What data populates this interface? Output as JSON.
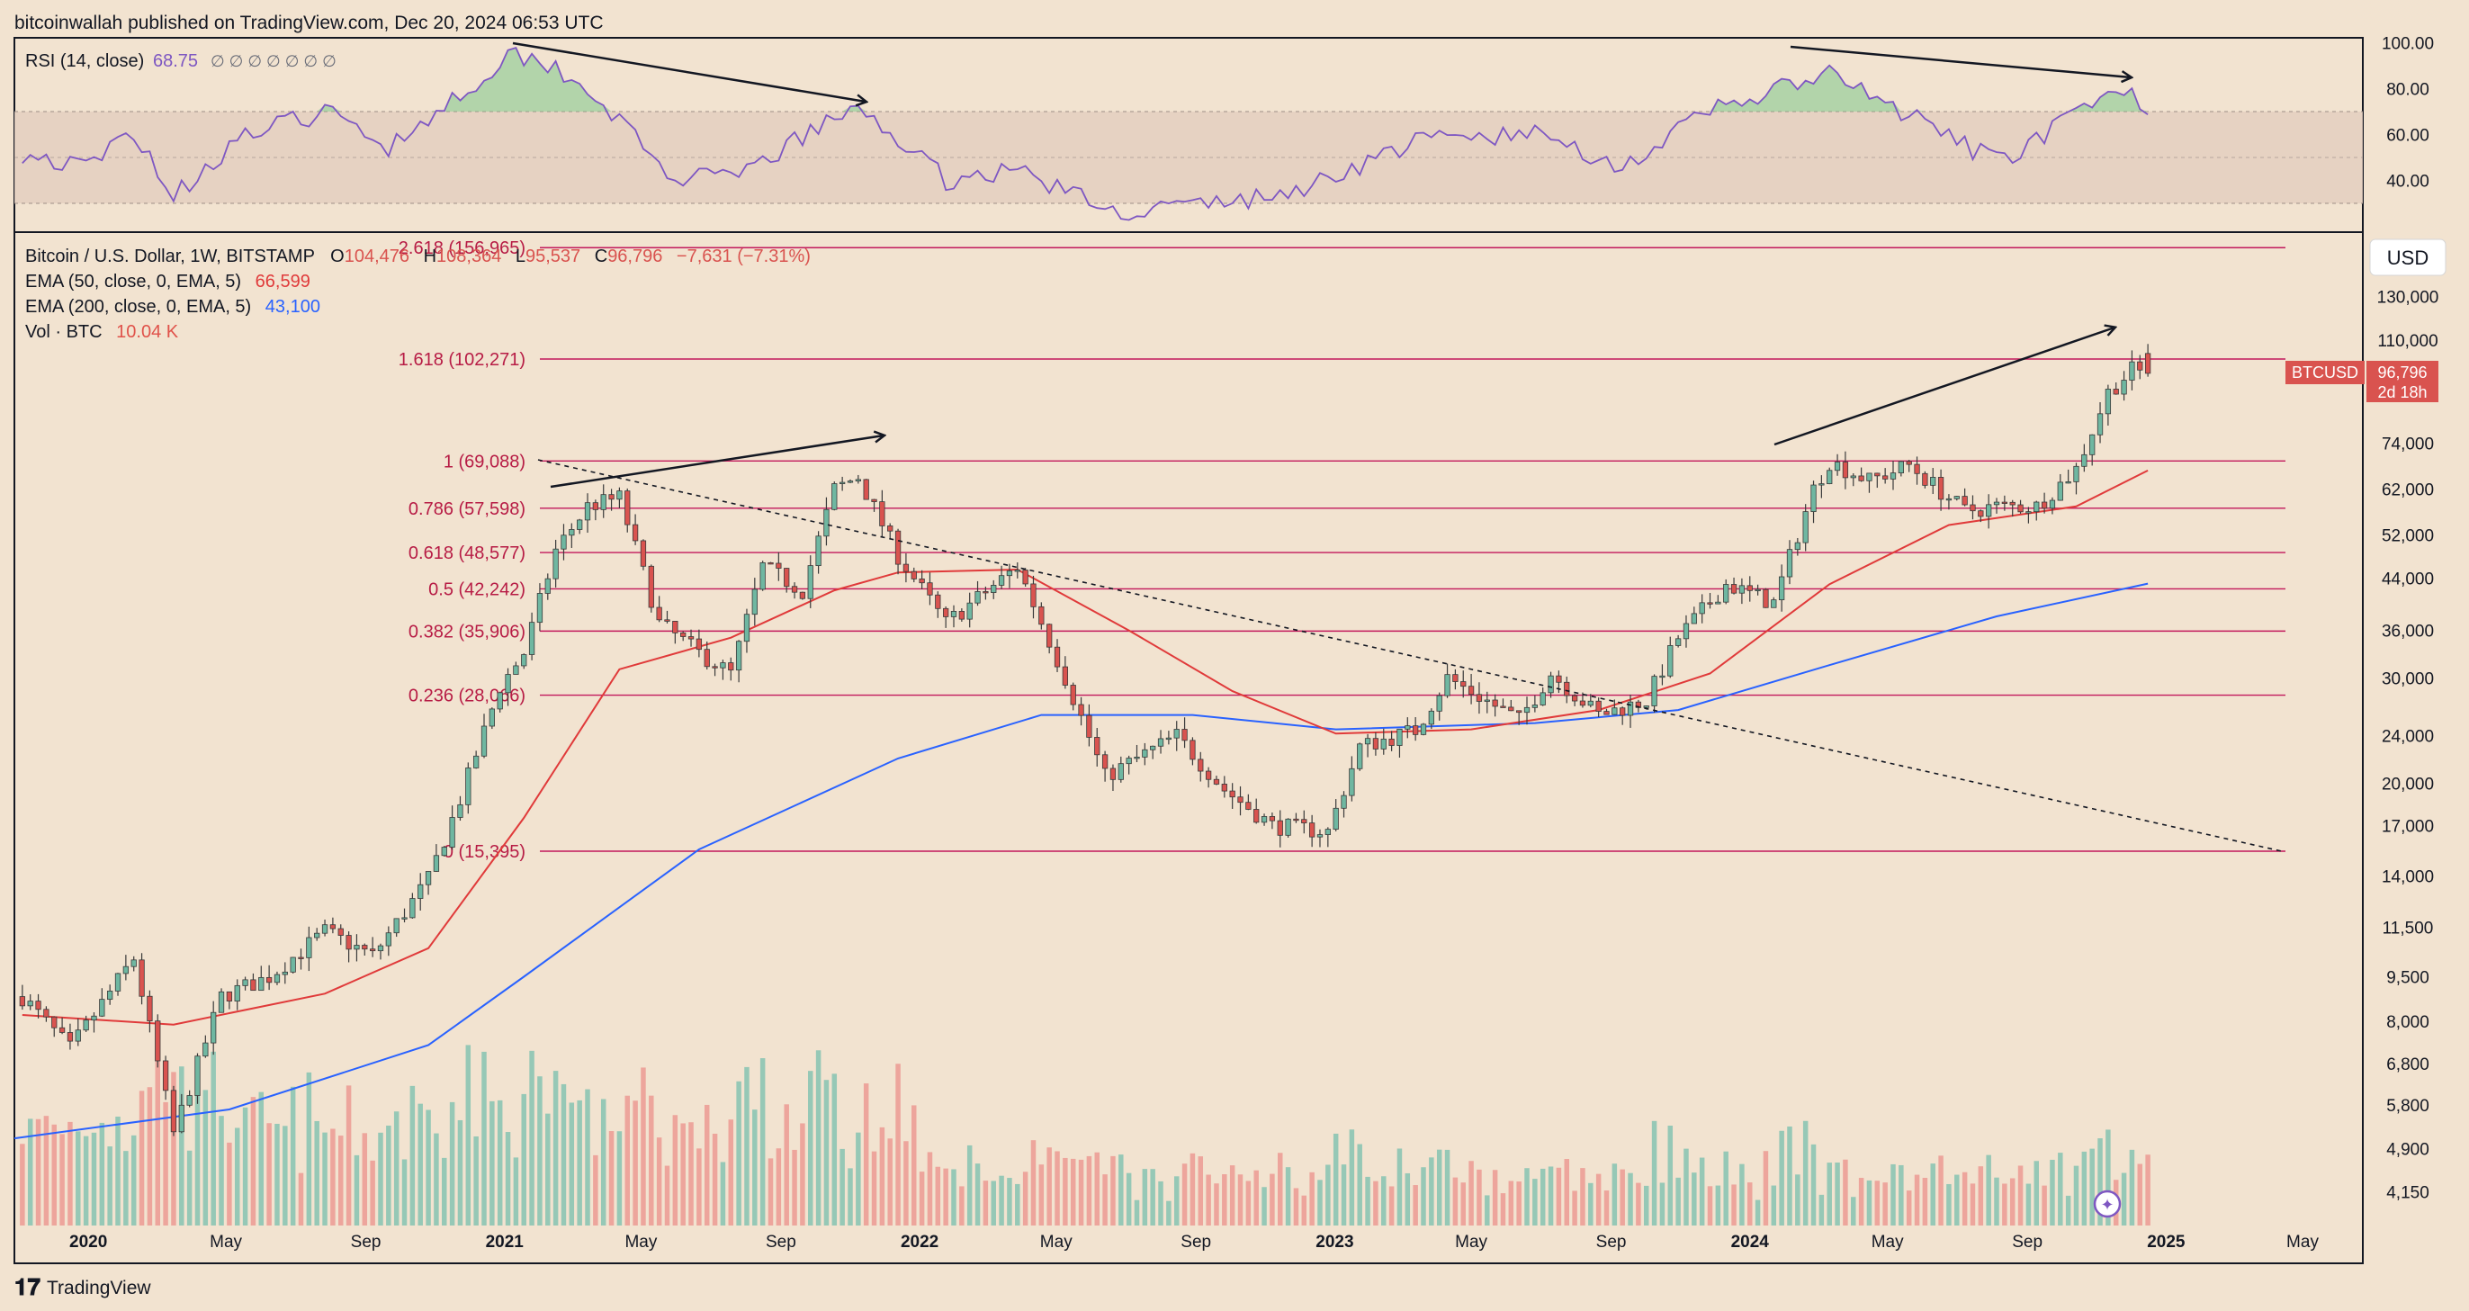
{
  "header": {
    "published_text": "bitcoinwallah published on TradingView.com, Dec 20, 2024 06:53 UTC"
  },
  "footer": {
    "brand": "TradingView"
  },
  "colors": {
    "background": "#f2e3d0",
    "up": "#6fb7a1",
    "down": "#d9534f",
    "rsi_line": "#7e57c2",
    "ema50": "#e03a3a",
    "ema200": "#2962ff",
    "fib_line": "#c2185b",
    "fib_text": "#b71c45",
    "price_badge": "#d9534f"
  },
  "rsi_panel": {
    "title": "RSI (14, close)",
    "value": "68.75",
    "placeholders": "∅ ∅ ∅ ∅ ∅ ∅ ∅",
    "axis_ticks": [
      "100.00",
      "80.00",
      "60.00",
      "40.00"
    ],
    "band_upper": 70,
    "band_mid": 50,
    "band_lower": 30
  },
  "price_panel": {
    "legend": {
      "symbol_line": "Bitcoin / U.S. Dollar, 1W, BITSTAMP",
      "open_label": "O",
      "open": "104,476",
      "high_label": "H",
      "high": "108,364",
      "low_label": "L",
      "low": "95,537",
      "close_label": "C",
      "close": "96,796",
      "change": "−7,631 (−7.31%)",
      "ema50_label": "EMA (50, close, 0, EMA, 5)",
      "ema50_value": "66,599",
      "ema200_label": "EMA (200, close, 0, EMA, 5)",
      "ema200_value": "43,100",
      "vol_label": "Vol · BTC",
      "vol_value": "10.04 K"
    },
    "currency_button": "USD",
    "price_axis_ticks": [
      "130,000",
      "110,000",
      "74,000",
      "62,000",
      "52,000",
      "44,000",
      "36,000",
      "30,000",
      "24,000",
      "20,000",
      "17,000",
      "14,000",
      "11,500",
      "9,500",
      "8,000",
      "6,800",
      "5,800",
      "4,900",
      "4,150"
    ],
    "price_badge": {
      "symbol": "BTCUSD",
      "price": "96,796",
      "countdown": "2d 18h"
    },
    "fib_levels": [
      {
        "label": "2.618 (156,965)",
        "price": 156965
      },
      {
        "label": "1.618 (102,271)",
        "price": 102271
      },
      {
        "label": "1 (69,088)",
        "price": 69088
      },
      {
        "label": "0.786 (57,598)",
        "price": 57598
      },
      {
        "label": "0.618 (48,577)",
        "price": 48577
      },
      {
        "label": "0.5 (42,242)",
        "price": 42242
      },
      {
        "label": "0.382 (35,906)",
        "price": 35906
      },
      {
        "label": "0.236 (28,066)",
        "price": 28066
      },
      {
        "label": "0 (15,395)",
        "price": 15395
      }
    ]
  },
  "time_axis": {
    "labels": [
      "2020",
      "May",
      "Sep",
      "2021",
      "May",
      "Sep",
      "2022",
      "May",
      "Sep",
      "2023",
      "May",
      "Sep",
      "2024",
      "May",
      "Sep",
      "2025",
      "May"
    ]
  },
  "chart_data": {
    "type": "candlestick",
    "title": "Bitcoin / U.S. Dollar, 1W, BITSTAMP",
    "scale": "log",
    "ylim": [
      3900,
      165000
    ],
    "x_range": [
      "2019-10-28",
      "2025-06-23"
    ],
    "price_anchors": [
      [
        "2019-11-04",
        8800
      ],
      [
        "2019-12-16",
        7200
      ],
      [
        "2020-02-10",
        10200
      ],
      [
        "2020-03-16",
        5200
      ],
      [
        "2020-04-27",
        8800
      ],
      [
        "2020-06-08",
        9500
      ],
      [
        "2020-07-27",
        11300
      ],
      [
        "2020-09-07",
        10300
      ],
      [
        "2020-10-26",
        13800
      ],
      [
        "2020-11-23",
        18800
      ],
      [
        "2020-12-28",
        29000
      ],
      [
        "2021-01-18",
        33000
      ],
      [
        "2021-02-15",
        49000
      ],
      [
        "2021-03-15",
        58000
      ],
      [
        "2021-04-12",
        60000
      ],
      [
        "2021-05-17",
        37000
      ],
      [
        "2021-06-21",
        33000
      ],
      [
        "2021-07-19",
        30500
      ],
      [
        "2021-08-16",
        46000
      ],
      [
        "2021-09-20",
        42000
      ],
      [
        "2021-10-18",
        62000
      ],
      [
        "2021-11-08",
        65000
      ],
      [
        "2021-12-13",
        48000
      ],
      [
        "2022-01-24",
        37000
      ],
      [
        "2022-03-28",
        46000
      ],
      [
        "2022-05-09",
        30000
      ],
      [
        "2022-06-13",
        20500
      ],
      [
        "2022-08-15",
        24000
      ],
      [
        "2022-09-26",
        19500
      ],
      [
        "2022-11-07",
        17000
      ],
      [
        "2022-12-26",
        16600
      ],
      [
        "2023-01-23",
        23000
      ],
      [
        "2023-03-13",
        24500
      ],
      [
        "2023-04-10",
        30000
      ],
      [
        "2023-06-12",
        25500
      ],
      [
        "2023-07-10",
        30500
      ],
      [
        "2023-08-21",
        26000
      ],
      [
        "2023-10-02",
        27500
      ],
      [
        "2023-10-30",
        35000
      ],
      [
        "2023-12-11",
        43000
      ],
      [
        "2024-01-22",
        40000
      ],
      [
        "2024-02-26",
        62000
      ],
      [
        "2024-03-11",
        69000
      ],
      [
        "2024-04-15",
        64000
      ],
      [
        "2024-05-20",
        68000
      ],
      [
        "2024-07-08",
        57000
      ],
      [
        "2024-08-05",
        58000
      ],
      [
        "2024-09-09",
        58000
      ],
      [
        "2024-10-14",
        67000
      ],
      [
        "2024-11-11",
        90000
      ],
      [
        "2024-12-02",
        98000
      ],
      [
        "2024-12-16",
        96796
      ]
    ],
    "ema50": [
      [
        "2019-11-04",
        8200
      ],
      [
        "2020-03-16",
        7900
      ],
      [
        "2020-07-27",
        8900
      ],
      [
        "2020-10-26",
        10600
      ],
      [
        "2021-01-18",
        17500
      ],
      [
        "2021-04-12",
        31000
      ],
      [
        "2021-07-19",
        35000
      ],
      [
        "2021-10-18",
        42000
      ],
      [
        "2021-12-13",
        45000
      ],
      [
        "2022-03-28",
        45500
      ],
      [
        "2022-07-04",
        36000
      ],
      [
        "2022-10-03",
        28500
      ],
      [
        "2023-01-02",
        24200
      ],
      [
        "2023-05-01",
        24600
      ],
      [
        "2023-08-21",
        26500
      ],
      [
        "2023-11-27",
        30500
      ],
      [
        "2024-03-11",
        43000
      ],
      [
        "2024-06-24",
        54000
      ],
      [
        "2024-10-14",
        58000
      ],
      [
        "2024-12-16",
        66599
      ]
    ],
    "ema200": [
      [
        "2019-10-28",
        5100
      ],
      [
        "2020-05-04",
        5700
      ],
      [
        "2020-10-26",
        7300
      ],
      [
        "2021-01-18",
        9500
      ],
      [
        "2021-06-21",
        15500
      ],
      [
        "2021-12-13",
        22000
      ],
      [
        "2022-04-18",
        26000
      ],
      [
        "2022-08-29",
        26000
      ],
      [
        "2023-01-02",
        24600
      ],
      [
        "2023-06-26",
        25200
      ],
      [
        "2023-10-30",
        26500
      ],
      [
        "2024-03-11",
        31500
      ],
      [
        "2024-08-05",
        38000
      ],
      [
        "2024-12-16",
        43100
      ]
    ],
    "rsi": [
      [
        "2019-11-04",
        52
      ],
      [
        "2019-12-30",
        45
      ],
      [
        "2020-02-10",
        62
      ],
      [
        "2020-03-16",
        33
      ],
      [
        "2020-05-11",
        58
      ],
      [
        "2020-07-27",
        70
      ],
      [
        "2020-09-21",
        55
      ],
      [
        "2020-12-21",
        88
      ],
      [
        "2021-01-04",
        96
      ],
      [
        "2021-02-15",
        90
      ],
      [
        "2021-03-29",
        74
      ],
      [
        "2021-05-24",
        42
      ],
      [
        "2021-07-19",
        40
      ],
      [
        "2021-10-18",
        67
      ],
      [
        "2021-11-15",
        70
      ],
      [
        "2022-01-24",
        40
      ],
      [
        "2022-03-28",
        45
      ],
      [
        "2022-06-20",
        26
      ],
      [
        "2022-11-14",
        33
      ],
      [
        "2023-03-20",
        58
      ],
      [
        "2023-07-03",
        60
      ],
      [
        "2023-09-11",
        46
      ],
      [
        "2023-12-04",
        72
      ],
      [
        "2024-03-11",
        86
      ],
      [
        "2024-05-20",
        68
      ],
      [
        "2024-08-05",
        48
      ],
      [
        "2024-11-18",
        78
      ],
      [
        "2024-12-09",
        75
      ],
      [
        "2024-12-16",
        68.75
      ]
    ]
  }
}
